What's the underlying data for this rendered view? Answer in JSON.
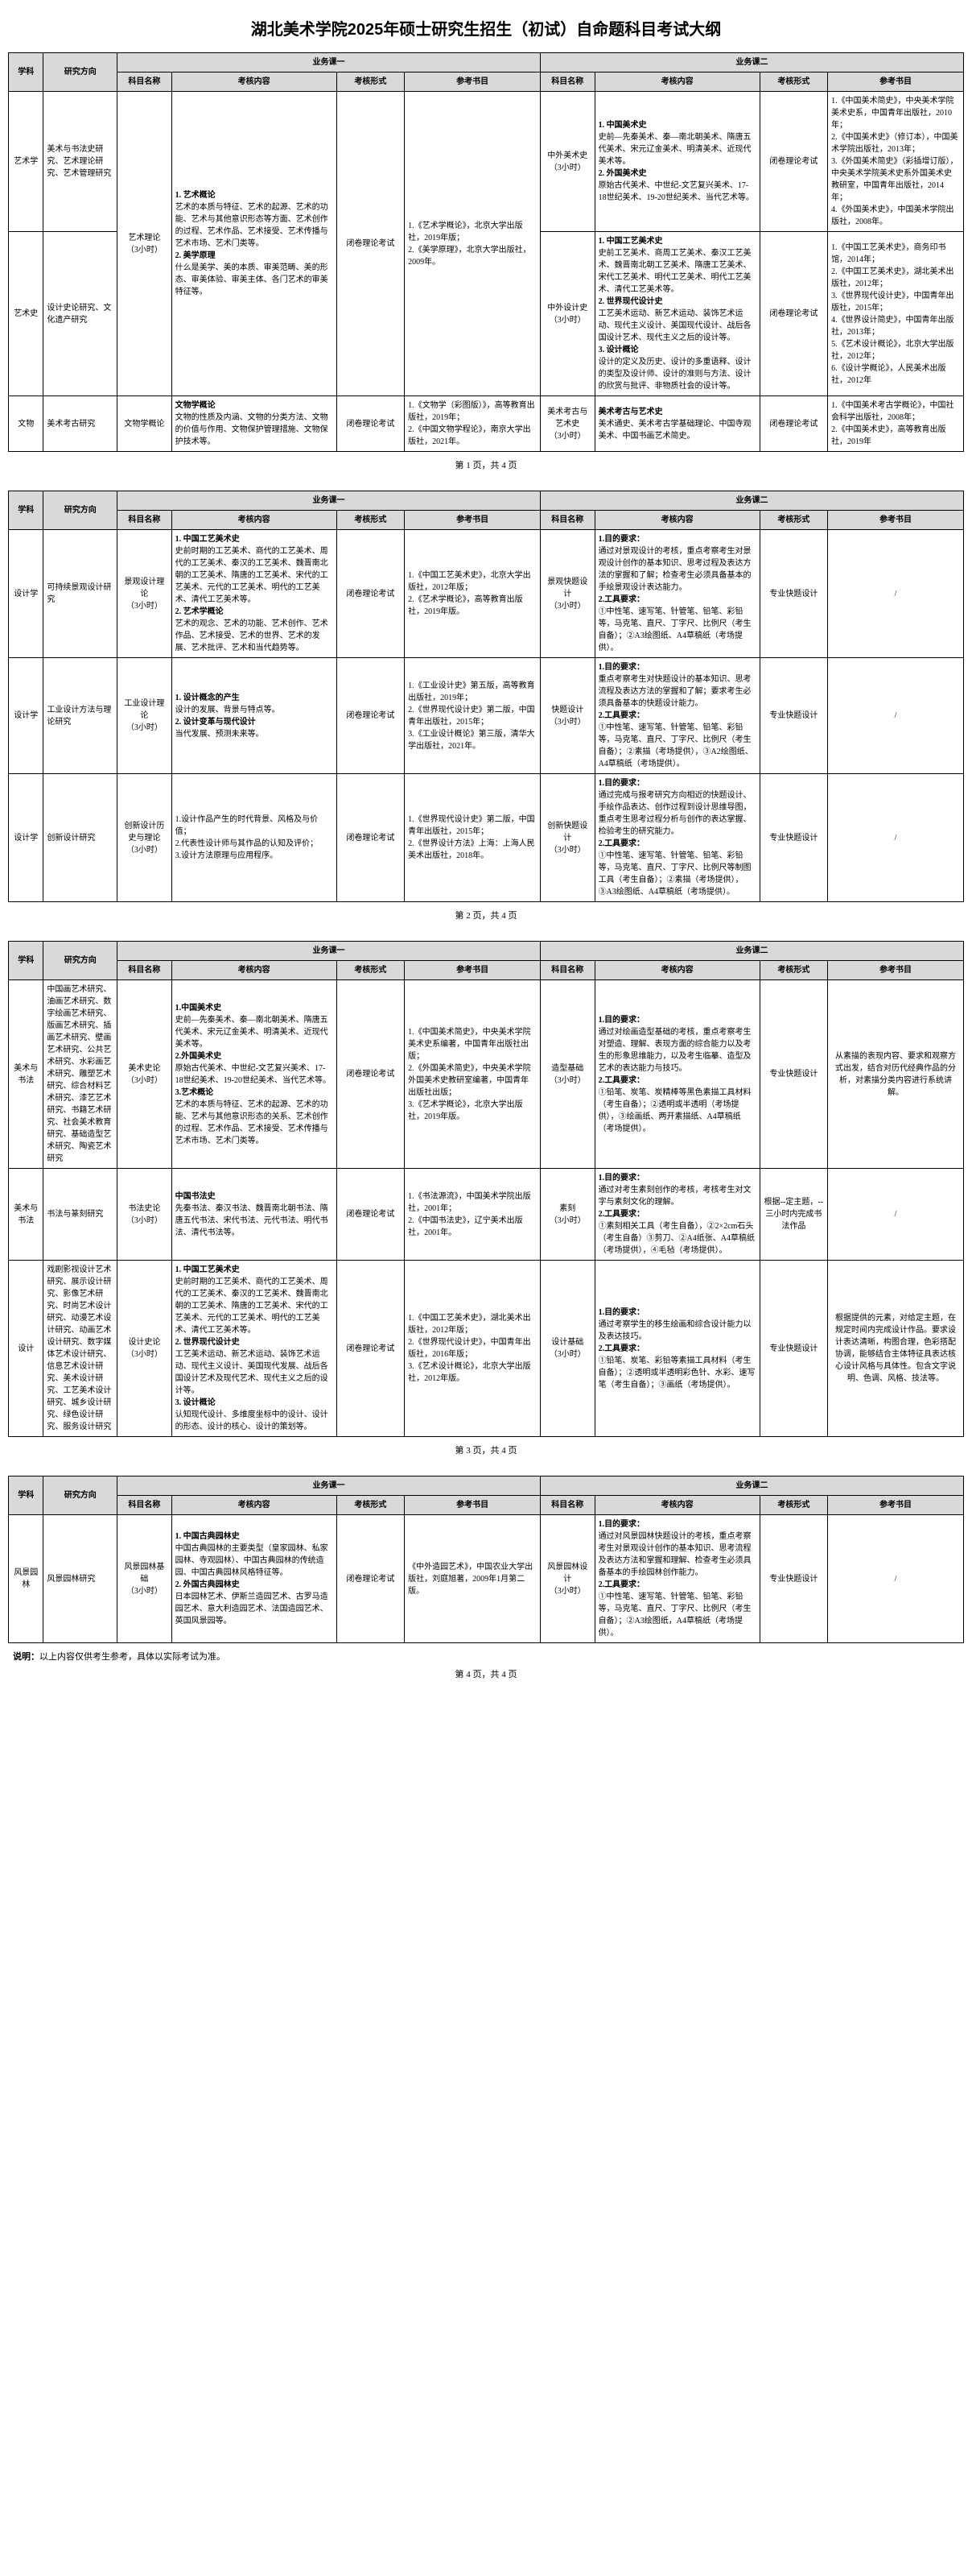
{
  "title": "湖北美术学院2025年硕士研究生招生（初试）自命题科目考试大纲",
  "headers": {
    "subject": "学科",
    "direction": "研究方向",
    "biz1": "业务课一",
    "biz2": "业务课二",
    "kmmc": "科目名称",
    "khnr": "考核内容",
    "khxs": "考核形式",
    "cksm": "参考书目"
  },
  "pager": {
    "p1": "第 1 页，共 4 页",
    "p2": "第 2 页，共 4 页",
    "p3": "第 3 页，共 4 页",
    "p4": "第 4 页，共 4 页"
  },
  "note_label": "说明：",
  "note_text": "以上内容仅供考生参考，具体以实际考试为准。",
  "p1_rows": [
    {
      "subject": "艺术学",
      "direction": "美术与书法史研究、艺术理论研究、艺术管理研究",
      "km1": "艺术理论\n（3小时）",
      "nr1_parts": [
        {
          "t": "1. 艺术概论",
          "b": true
        },
        {
          "t": "艺术的本质与特征、艺术的起源、艺术的功能、艺术与其他意识形态等方面、艺术创作的过程、艺术作品、艺术接受、艺术传播与艺术市场、艺术门类等。"
        },
        {
          "t": "2. 美学原理",
          "b": true
        },
        {
          "t": "什么是美学、美的本质、审美范畴、美的形态、审美体验、审美主体、各门艺术的审美特征等。"
        }
      ],
      "xs1": "闭卷理论考试",
      "ref1": "1.《艺术学概论》，北京大学出版社，2019年版；\n2.《美学原理》，北京大学出版社，2009年。",
      "km2": "中外美术史\n（3小时）",
      "nr2_parts": [
        {
          "t": "1. 中国美术史",
          "b": true
        },
        {
          "t": "史前—先秦美术、秦—南北朝美术、隋唐五代美术、宋元辽金美术、明清美术、近现代美术等。"
        },
        {
          "t": "2. 外国美术史",
          "b": true
        },
        {
          "t": "原始古代美术、中世纪-文艺复兴美术、17-18世纪美术、19-20世纪美术、当代艺术等。"
        }
      ],
      "xs2": "闭卷理论考试",
      "ref2": "1.《中国美术简史》，中央美术学院美术史系，中国青年出版社，2010年；\n2.《中国美术史》（修订本），中国美术学院出版社，2013年；\n3.《外国美术简史》（彩插增订版），中央美术学院美术史系外国美术史教研室，中国青年出版社，2014年；\n4.《外国美术史》，中国美术学院出版社，2008年。"
    },
    {
      "subject": "艺术史",
      "direction": "设计史论研究、文化遗产研究",
      "km1": "",
      "nr1_parts": [],
      "xs1": "",
      "ref1": "",
      "km2": "中外设计史\n（3小时）",
      "nr2_parts": [
        {
          "t": "1. 中国工艺美术史",
          "b": true
        },
        {
          "t": "史前工艺美术、商周工艺美术、秦汉工艺美术、魏晋南北朝工艺美术、隋唐工艺美术、宋代工艺美术、明代工艺美术、明代工艺美术、清代工艺美术等。"
        },
        {
          "t": "2. 世界现代设计史",
          "b": true
        },
        {
          "t": "工艺美术运动、新艺术运动、装饰艺术运动、现代主义设计、美国现代设计、战后各国设计艺术、现代主义之后的设计等。"
        },
        {
          "t": "3. 设计概论",
          "b": true
        },
        {
          "t": "设计的定义及历史、设计的多重语释、设计的类型及设计师、设计的准则与方法、设计的欣赏与批评、非物质社会的设计等。"
        }
      ],
      "xs2": "闭卷理论考试",
      "ref2": "1.《中国工艺美术史》，商务印书馆，2014年；\n2.《中国工艺美术史》，湖北美术出版社，2012年；\n3.《世界现代设计史》，中国青年出版社，2015年；\n4.《世界设计简史》，中国青年出版社，2013年；\n5.《艺术设计概论》，北京大学出版社，2012年；\n6.《设计学概论》，人民美术出版社，2012年"
    },
    {
      "subject": "文物",
      "direction": "美术考古研究",
      "km1": "文物学概论",
      "nr1_parts": [
        {
          "t": "文物学概论",
          "b": true
        },
        {
          "t": "文物的性质及内涵、文物的分类方法、文物的价值与作用、文物保护管理措施、文物保护技术等。"
        }
      ],
      "xs1": "闭卷理论考试",
      "ref1": "1.《文物学（彩图版）》，高等教育出版社，2019年；\n2.《中国文物学程论》，南京大学出版社，2021年。",
      "km2": "美术考古与艺术史\n（3小时）",
      "nr2_parts": [
        {
          "t": "美术考古与艺术史",
          "b": true
        },
        {
          "t": "美术通史、美术考古学基础理论、中国寺观美术、中国书画艺术简史。"
        }
      ],
      "xs2": "闭卷理论考试",
      "ref2": "1.《中国美术考古学概论》，中国社会科学出版社，2008年；\n2.《中国美术史》，高等教育出版社，2019年"
    }
  ],
  "p2_rows": [
    {
      "subject": "设计学",
      "direction": "可持续景观设计研究",
      "km1": "景观设计理论\n（3小时）",
      "nr1_parts": [
        {
          "t": "1. 中国工艺美术史",
          "b": true
        },
        {
          "t": "史前时期的工艺美术、商代的工艺美术、周代的工艺美术、秦汉的工艺美术、魏晋南北朝的工艺美术、隋唐的工艺美术、宋代的工艺美术、元代的工艺美术、明代的工艺美术、清代工艺美术等。"
        },
        {
          "t": "2. 艺术学概论",
          "b": true
        },
        {
          "t": "艺术的观念、艺术的功能、艺术创作、艺术作品、艺术接受、艺术的世界、艺术的发展、艺术批评、艺术和当代趋势等。"
        }
      ],
      "xs1": "闭卷理论考试",
      "ref1": "1.《中国工艺美术史》，北京大学出版社，2012年版；\n2.《艺术学概论》，高等教育出版社，2019年版。",
      "km2": "景观快题设计\n（3小时）",
      "nr2_parts": [
        {
          "t": "1.目的要求：",
          "b": true
        },
        {
          "t": "通过对景观设计的考核，重点考察考生对景观设计创作的基本知识、思考过程及表达方法的掌握和了解；检查考生必须具备基本的手绘景观设计表达能力。"
        },
        {
          "t": "2.工具要求：",
          "b": true
        },
        {
          "t": "①中性笔、速写笔、针管笔、铅笔、彩铅等，马克笔、直尺、丁字尺、比例尺（考生自备）；②A3绘图纸、A4草稿纸（考场提供）。"
        }
      ],
      "xs2": "专业快题设计",
      "ref2": "/"
    },
    {
      "subject": "设计学",
      "direction": "工业设计方法与理论研究",
      "km1": "工业设计理论\n（3小时）",
      "nr1_parts": [
        {
          "t": "1. 设计概念的产生",
          "b": true
        },
        {
          "t": "设计的发展、背景与特点等。"
        },
        {
          "t": "2. 设计变革与现代设计",
          "b": true
        },
        {
          "t": "当代发展、预测未来等。"
        }
      ],
      "xs1": "闭卷理论考试",
      "ref1": "1.《工业设计史》第五版，高等教育出版社，2019年；\n2.《世界现代设计史》第二版，中国青年出版社，2015年；\n3.《工业设计概论》第三版，清华大学出版社，2021年。",
      "km2": "快题设计\n（3小时）",
      "nr2_parts": [
        {
          "t": "1.目的要求：",
          "b": true
        },
        {
          "t": "重点考察考生对快题设计的基本知识、思考流程及表达方法的掌握和了解；要求考生必须具备基本的快题设计能力。"
        },
        {
          "t": "2.工具要求：",
          "b": true
        },
        {
          "t": "①中性笔、速写笔、针管笔、铅笔、彩铅等，马克笔、直尺、丁字尺、比例尺（考生自备）；②素描（考场提供），③A2绘图纸、A4草稿纸（考场提供）。"
        }
      ],
      "xs2": "专业快题设计",
      "ref2": "/"
    },
    {
      "subject": "设计学",
      "direction": "创新设计研究",
      "km1": "创新设计历史与理论\n（3小时）",
      "nr1_parts": [
        {
          "t": "1.设计作品产生的时代背景、风格及与价值；"
        },
        {
          "t": "2.代表性设计师与其作品的认知及评价；"
        },
        {
          "t": "3.设计方法原理与应用程序。"
        }
      ],
      "xs1": "闭卷理论考试",
      "ref1": "1.《世界现代设计史》第二版，中国青年出版社，2015年；\n2.《世界设计方法》上海：上海人民美术出版社，2018年。",
      "km2": "创新快题设计\n（3小时）",
      "nr2_parts": [
        {
          "t": "1.目的要求：",
          "b": true
        },
        {
          "t": "通过完成与报考研究方向相近的快题设计、手绘作品表达、创作过程到设计思维导图，重点考生思考过程分析与创作的表达掌握、检验考生的研究能力。"
        },
        {
          "t": "2.工具要求：",
          "b": true
        },
        {
          "t": "①中性笔、速写笔、针管笔、铅笔、彩铅等，马克笔、直尺、丁字尺、比例尺等制图工具（考生自备）；②素描（考场提供），③A3绘图纸、A4草稿纸（考场提供）。"
        }
      ],
      "xs2": "专业快题设计",
      "ref2": "/"
    }
  ],
  "p3_rows": [
    {
      "subject": "美术与书法",
      "direction": "中国画艺术研究、油画艺术研究、数字绘画艺术研究、版画艺术研究、插画艺术研究、壁画艺术研究、公共艺术研究、水彩画艺术研究、雕塑艺术研究、综合材料艺术研究、漆艺艺术研究、书籍艺术研究、社会美术教育研究、基础造型艺术研究、陶瓷艺术研究",
      "km1": "美术史论\n（3小时）",
      "nr1_parts": [
        {
          "t": "1.中国美术史",
          "b": true
        },
        {
          "t": "史前—先秦美术、秦—南北朝美术、隋唐五代美术、宋元辽金美术、明清美术、近现代美术等。"
        },
        {
          "t": "2.外国美术史",
          "b": true
        },
        {
          "t": "原始古代美术、中世纪-文艺复兴美术、17-18世纪美术、19-20世纪美术、当代艺术等。"
        },
        {
          "t": "3.艺术概论",
          "b": true
        },
        {
          "t": "艺术的本质与特征、艺术的起源、艺术的功能、艺术与其他意识形态的关系、艺术创作的过程、艺术作品、艺术接受、艺术传播与艺术市场、艺术门类等。"
        }
      ],
      "xs1": "闭卷理论考试",
      "ref1": "1.《中国美术简史》，中央美术学院美术史系编著，中国青年出版社出版；\n2.《外国美术简史》，中央美术学院外国美术史教研室编著，中国青年出版社出版；\n3.《艺术学概论》，北京大学出版社，2019年版。",
      "km2": "造型基础\n（3小时）",
      "nr2_parts": [
        {
          "t": "1.目的要求：",
          "b": true
        },
        {
          "t": "通过对绘画造型基础的考核，重点考察考生对塑造、理解、表现方面的综合能力以及考生的形象思维能力，以及考生临摹、造型及艺术的表达能力与技巧。"
        },
        {
          "t": "2.工具要求：",
          "b": true
        },
        {
          "t": "①铅笔、炭笔、炭精棒等黑色素描工具材料（考生自备）；②透明或半透明（考场提供），③绘画纸、两开素描纸、A4草稿纸（考场提供）。"
        }
      ],
      "xs2": "专业快题设计",
      "ref2": "从素描的表现内容、要求和观察方式出发，结合对历代经典作品的分析，对素描分类内容进行系统讲解。"
    },
    {
      "subject": "美术与书法",
      "direction": "书法与篆刻研究",
      "km1": "书法史论\n（3小时）",
      "nr1_parts": [
        {
          "t": "中国书法史",
          "b": true
        },
        {
          "t": "先秦书法、秦汉书法、魏晋南北朝书法、隋唐五代书法、宋代书法、元代书法、明代书法、清代书法等。"
        }
      ],
      "xs1": "闭卷理论考试",
      "ref1": "1.《书法源流》，中国美术学院出版社，2001年；\n2.《中国书法史》，辽宁美术出版社，2001年。",
      "km2": "素刻\n（3小时）",
      "nr2_parts": [
        {
          "t": "1.目的要求：",
          "b": true
        },
        {
          "t": "通过对考生素刻创作的考核，考核考生对文字与素刻文化的理解。"
        },
        {
          "t": "2.工具要求：",
          "b": true
        },
        {
          "t": "①素刻相关工具（考生自备），②2×2cm石头（考生自备）③剪刀、②A4纸张、A4草稿纸（考场提供），④毛毡（考场提供）。"
        }
      ],
      "xs2": "根据--定主题，--三小时内完成书法作品",
      "ref2": "/"
    },
    {
      "subject": "设计",
      "direction": "戏剧影视设计艺术研究、展示设计研究、影像艺术研究、时尚艺术设计研究、动漫艺术设计研究、动画艺术设计研究、数字媒体艺术设计研究、信息艺术设计研究、美术设计研究、工艺美术设计研究、城乡设计研究、绿色设计研究、服务设计研究",
      "km1": "设计史论\n（3小时）",
      "nr1_parts": [
        {
          "t": "1. 中国工艺美术史",
          "b": true
        },
        {
          "t": "史前时期的工艺美术、商代的工艺美术、周代的工艺美术、秦汉的工艺美术、魏晋南北朝的工艺美术、隋唐的工艺美术、宋代的工艺美术、元代的工艺美术、明代的工艺美术、清代工艺美术等。"
        },
        {
          "t": "2. 世界现代设计史",
          "b": true
        },
        {
          "t": "工艺美术运动、新艺术运动、装饰艺术运动、现代主义设计、美国现代发展、战后各国设计艺术及现代艺术、现代主义之后的设计等。"
        },
        {
          "t": "3. 设计概论",
          "b": true
        },
        {
          "t": "认知现代设计、多维度坐标中的设计、设计的形态、设计的核心、设计的策划等。"
        }
      ],
      "xs1": "闭卷理论考试",
      "ref1": "1.《中国工艺美术史》，湖北美术出版社，2012年版；\n2.《世界现代设计史》，中国青年出版社，2016年版；\n3.《艺术设计概论》，北京大学出版社，2012年版。",
      "km2": "设计基础\n（3小时）",
      "nr2_parts": [
        {
          "t": "1.目的要求：",
          "b": true
        },
        {
          "t": "通过考察学生的移生绘画和综合设计能力以及表达技巧。"
        },
        {
          "t": "2.工具要求：",
          "b": true
        },
        {
          "t": "①铅笔、炭笔、彩铅等素描工具材料（考生自备）；②透明或半透明彩色针、水彩、速写笔（考生自备）；③画纸（考场提供）。"
        }
      ],
      "xs2": "专业快题设计",
      "ref2": "根据提供的元素，对给定主题，在规定时间内完成设计作品。要求设计表达清晰，构图合理，色彩搭配协调，能够结合主体特征具表达核心设计风格与具体性。包含文字说明、色调、风格、技法等。"
    }
  ],
  "p4_rows": [
    {
      "subject": "风景园林",
      "direction": "风景园林研究",
      "km1": "风景园林基础\n（3小时）",
      "nr1_parts": [
        {
          "t": "1. 中国古典园林史",
          "b": true
        },
        {
          "t": "中国古典园林的主要类型（皇家园林、私家园林、寺观园林）、中国古典园林的传统造园、中国古典园林风格特征等。"
        },
        {
          "t": "2. 外国古典园林史",
          "b": true
        },
        {
          "t": "日本园林艺术、伊斯兰造园艺术、古罗马造园艺术、意大利造园艺术、法国造园艺术、英国风景园等。"
        }
      ],
      "xs1": "闭卷理论考试",
      "ref1": "《中外造园艺术》，中国农业大学出版社，刘庭旭著，2009年1月第二版。",
      "km2": "风景园林设计\n（3小时）",
      "nr2_parts": [
        {
          "t": "1.目的要求：",
          "b": true
        },
        {
          "t": "通过对风景园林快题设计的考核，重点考察考生对景观设计创作的基本知识、思考流程及表达方法和掌握和理解、检查考生必须具备基本的手绘园林创作能力。"
        },
        {
          "t": "2.工具要求：",
          "b": true
        },
        {
          "t": "①中性笔、速写笔、针管笔、铅笔、彩铅等，马克笔、直尺、丁字尺、比例尺（考生自备）；②A3绘图纸，A4草稿纸（考场提供）。"
        }
      ],
      "xs2": "专业快题设计",
      "ref2": "/"
    }
  ]
}
